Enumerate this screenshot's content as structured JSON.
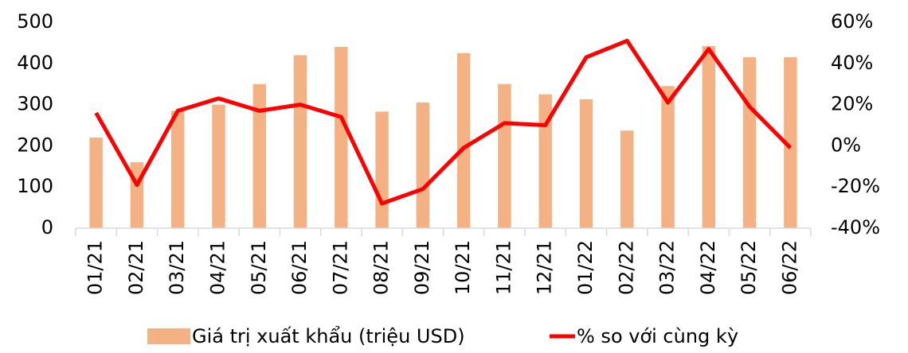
{
  "chart_data": {
    "type": "bar",
    "categories": [
      "01/21",
      "02/21",
      "03/21",
      "04/21",
      "05/21",
      "06/21",
      "07/21",
      "08/21",
      "09/21",
      "10/21",
      "11/21",
      "12/21",
      "01/22",
      "02/22",
      "03/22",
      "04/22",
      "05/22",
      "06/22"
    ],
    "series": [
      {
        "name": "Giá trị xuất khẩu (triệu USD)",
        "type": "bar",
        "color": "#f4b183",
        "values": [
          220,
          160,
          285,
          300,
          350,
          420,
          440,
          283,
          305,
          425,
          350,
          325,
          313,
          237,
          345,
          442,
          415,
          415
        ]
      },
      {
        "name": "% so với cùng kỳ",
        "type": "line",
        "axis": "y2",
        "color": "#ff0000",
        "values": [
          16,
          -19,
          17,
          23,
          17,
          20,
          14,
          -28,
          -21,
          -1,
          11,
          10,
          43,
          51,
          21,
          47,
          19,
          -1
        ]
      }
    ],
    "ylim": [
      0,
      500
    ],
    "yticks": [
      0,
      100,
      200,
      300,
      400,
      500
    ],
    "y2lim": [
      -40,
      60
    ],
    "y2ticks": [
      {
        "value": -40,
        "label": "-40%"
      },
      {
        "value": -20,
        "label": "-20%"
      },
      {
        "value": 0,
        "label": "0%"
      },
      {
        "value": 20,
        "label": "20%"
      },
      {
        "value": 40,
        "label": "40%"
      },
      {
        "value": 60,
        "label": "60%"
      }
    ]
  }
}
